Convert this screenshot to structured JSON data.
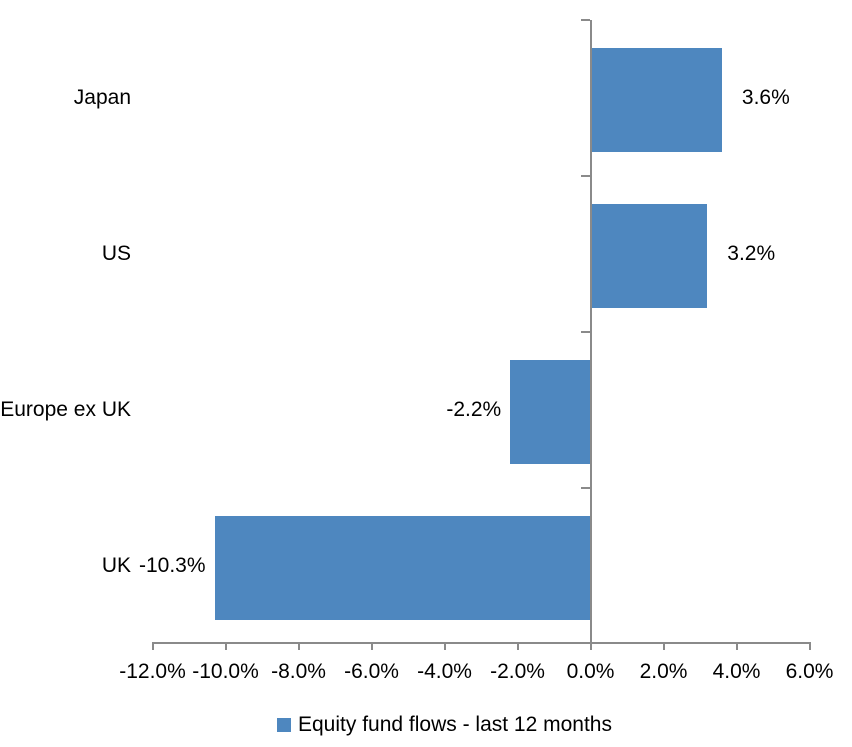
{
  "chart_data": {
    "type": "bar",
    "orientation": "horizontal",
    "title": "",
    "categories": [
      "Japan",
      "US",
      "Europe ex UK",
      "UK"
    ],
    "series": [
      {
        "name": "Equity fund flows - last 12 months",
        "values": [
          3.6,
          3.2,
          -2.2,
          -10.3
        ],
        "data_labels": [
          "3.6%",
          "3.2%",
          "-2.2%",
          "-10.3%"
        ]
      }
    ],
    "x_axis": {
      "min": -12,
      "max": 6,
      "step": 2,
      "tick_labels": [
        "-12.0%",
        "-10.0%",
        "-8.0%",
        "-6.0%",
        "-4.0%",
        "-2.0%",
        "0.0%",
        "2.0%",
        "4.0%",
        "6.0%"
      ]
    },
    "y_axis": {
      "baseline_value": 0
    },
    "grid": false,
    "legend": {
      "position": "bottom",
      "label": "Equity fund flows - last 12 months"
    },
    "colors": {
      "bar": "#4e87bf",
      "axis": "#8a8a8a",
      "text": "#000000",
      "background": "#ffffff"
    }
  }
}
